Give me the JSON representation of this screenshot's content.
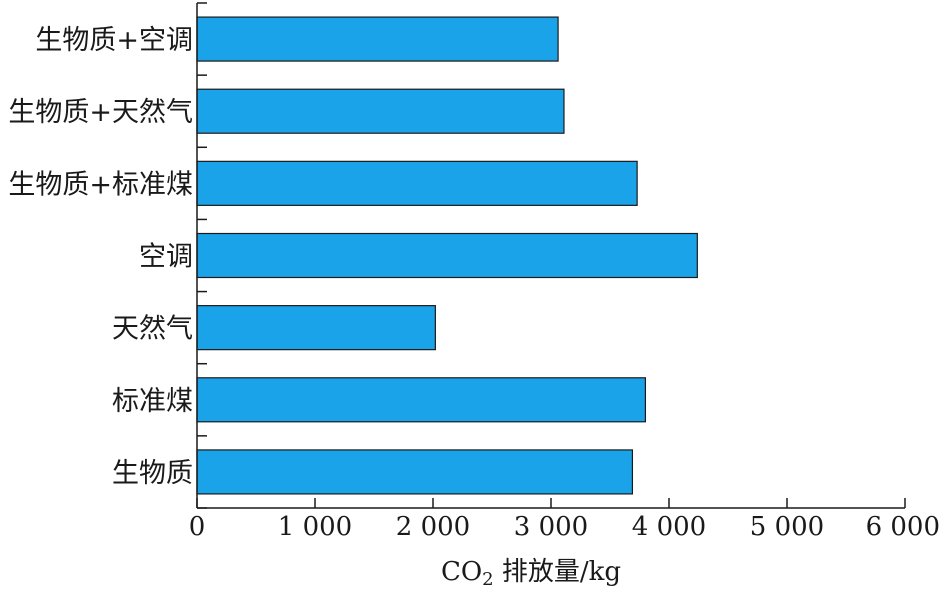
{
  "chart_data": {
    "type": "bar",
    "orientation": "horizontal",
    "categories": [
      "生物质+空调",
      "生物质+天然气",
      "生物质+标准煤",
      "空调",
      "天然气",
      "标准煤",
      "生物质"
    ],
    "values": [
      3060,
      3110,
      3730,
      4240,
      2020,
      3800,
      3690
    ],
    "xticks": [
      "0",
      "1 000",
      "2 000",
      "3 000",
      "4 000",
      "5 000",
      "6 000"
    ],
    "xtick_values": [
      0,
      1000,
      2000,
      3000,
      4000,
      5000,
      6000
    ],
    "xlim": [
      0,
      6000
    ],
    "xlabel": {
      "prefix": "CO",
      "sub": "2",
      "suffix": " 排放量/kg"
    },
    "bar_color": "#1aa3e8",
    "grid": false
  }
}
